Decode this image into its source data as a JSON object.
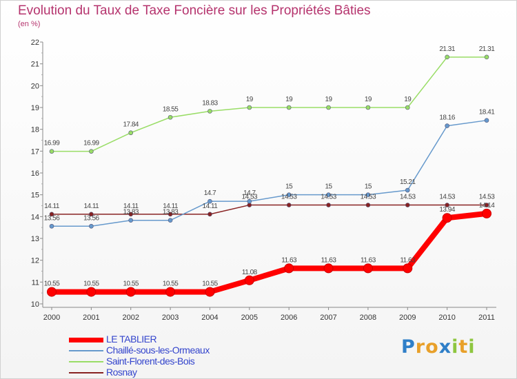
{
  "header": {
    "title": "Evolution du Taux de Taxe Foncière sur les Propriétés Bâties",
    "unit": "(en %)"
  },
  "chart_data": {
    "type": "line",
    "x": [
      "2000",
      "2001",
      "2002",
      "2003",
      "2004",
      "2005",
      "2006",
      "2007",
      "2008",
      "2009",
      "2010",
      "2011"
    ],
    "ylim": [
      10,
      22
    ],
    "yticks": [
      10,
      11,
      12,
      13,
      14,
      15,
      16,
      17,
      18,
      19,
      20,
      21,
      22
    ],
    "grid": false,
    "legend_position": "bottom-left",
    "series": [
      {
        "name": "LE TABLIER",
        "color": "#ff0000",
        "values": [
          10.55,
          10.55,
          10.55,
          10.55,
          10.55,
          11.08,
          11.63,
          11.63,
          11.63,
          11.63,
          13.94,
          14.14
        ],
        "labels": [
          "10.55",
          "10.55",
          "10.55",
          "10.55",
          "10.55",
          "11.08",
          "11.63",
          "11.63",
          "11.63",
          "11.63",
          "13.94",
          "14.14"
        ]
      },
      {
        "name": "Chaillé-sous-les-Ormeaux",
        "color": "#6699cc",
        "values": [
          13.56,
          13.56,
          13.83,
          13.83,
          14.7,
          14.7,
          15,
          15,
          15,
          15.21,
          18.16,
          18.41
        ],
        "labels": [
          "13.56",
          "13.56",
          "13.83",
          "13.83",
          "14.7",
          "14.7",
          "15",
          "15",
          "15",
          "15.21",
          "18.16",
          "18.41"
        ]
      },
      {
        "name": "Saint-Florent-des-Bois",
        "color": "#99dd66",
        "values": [
          16.99,
          16.99,
          17.84,
          18.55,
          18.83,
          19,
          19,
          19,
          19,
          19,
          21.31,
          21.31
        ],
        "labels": [
          "16.99",
          "16.99",
          "17.84",
          "18.55",
          "18.83",
          "19",
          "19",
          "19",
          "19",
          "19",
          "21.31",
          "21.31"
        ]
      },
      {
        "name": "Rosnay",
        "color": "#882222",
        "values": [
          14.11,
          14.11,
          14.11,
          14.11,
          14.11,
          14.53,
          14.53,
          14.53,
          14.53,
          14.53,
          14.53,
          14.53
        ],
        "labels": [
          "14.11",
          "14.11",
          "14.11",
          "14.11",
          "14.11",
          "14.53",
          "14.53",
          "14.53",
          "14.53",
          "14.53",
          "14.53",
          "14.53"
        ]
      }
    ]
  },
  "legend": {
    "items": [
      {
        "label": "LE TABLIER",
        "color": "#ff0000",
        "thickness": 7
      },
      {
        "label": "Chaillé-sous-les-Ormeaux",
        "color": "#6699cc",
        "thickness": 2
      },
      {
        "label": "Saint-Florent-des-Bois",
        "color": "#99dd66",
        "thickness": 2
      },
      {
        "label": "Rosnay",
        "color": "#882222",
        "thickness": 2
      }
    ]
  },
  "logo": {
    "letters": [
      {
        "char": "P",
        "color": "#2f7fc8"
      },
      {
        "char": "r",
        "color": "#e8a02a"
      },
      {
        "char": "o",
        "color": "#e8a02a"
      },
      {
        "char": "x",
        "color": "#2f7fc8"
      },
      {
        "char": "i",
        "color": "#8ec63f"
      },
      {
        "char": "t",
        "color": "#e8a02a"
      },
      {
        "char": "i",
        "color": "#8ec63f"
      }
    ]
  }
}
